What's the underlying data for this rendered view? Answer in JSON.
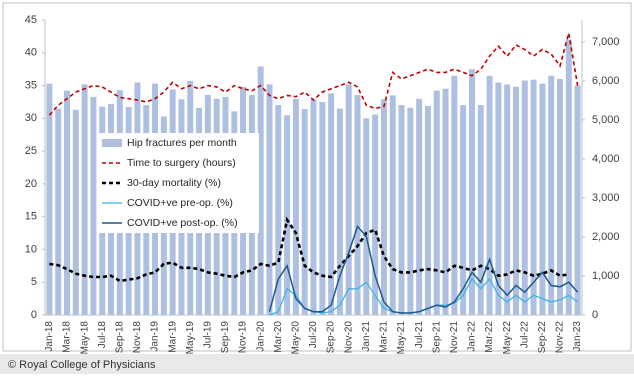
{
  "chart_data": {
    "type": "bar-line",
    "categories": [
      "Jan-18",
      null,
      "Mar-18",
      null,
      "May-18",
      null,
      "Jul-18",
      null,
      "Sep-18",
      null,
      "Nov-18",
      null,
      "Jan-19",
      null,
      "Mar-19",
      null,
      "May-19",
      null,
      "Jul-19",
      null,
      "Sep-19",
      null,
      "Nov-19",
      null,
      "Jan-20",
      null,
      "Mar-20",
      null,
      "May-20",
      null,
      "Jul-20",
      null,
      "Sep-20",
      null,
      "Nov-20",
      null,
      "Jan-21",
      null,
      "Mar-21",
      null,
      "May-21",
      null,
      "Jul-21",
      null,
      "Sep-21",
      null,
      "Nov-21",
      null,
      "Jan-22",
      null,
      "Mar-22",
      null,
      "May-22",
      null,
      "Jul-22",
      null,
      "Sep-22",
      null,
      "Nov-22",
      null,
      "Jan-23"
    ],
    "series": [
      {
        "name": "Hip fractures per month",
        "type": "bar",
        "axis": "y2",
        "color": "#aec0e2",
        "values": [
          5930,
          5290,
          5750,
          5260,
          5910,
          5590,
          5340,
          5410,
          5760,
          5330,
          5960,
          5380,
          5930,
          5090,
          5780,
          5530,
          6000,
          5310,
          5640,
          5540,
          5590,
          5220,
          5850,
          5640,
          6370,
          5910,
          5380,
          5120,
          5540,
          5280,
          5530,
          5460,
          5680,
          5290,
          5910,
          5640,
          5040,
          5140,
          5530,
          5630,
          5380,
          5310,
          5540,
          5360,
          5750,
          5800,
          6130,
          5380,
          6300,
          5380,
          6130,
          5960,
          5910,
          5850,
          6010,
          6030,
          5930,
          6130,
          6050,
          7060,
          5880
        ]
      },
      {
        "name": "Time to surgery (hours)",
        "type": "line",
        "dash": "4,3",
        "width": 1.6,
        "color": "#c00000",
        "values": [
          30.5,
          32,
          33,
          34,
          34.5,
          35,
          34.8,
          34,
          33.2,
          33,
          32.8,
          32.5,
          33,
          34,
          35.5,
          34.5,
          35,
          34.5,
          35,
          34.8,
          34,
          35,
          34.5,
          34.2,
          35,
          33.5,
          33,
          33.5,
          33.3,
          34,
          32.8,
          34,
          34.5,
          35,
          35.5,
          34.8,
          32,
          31.5,
          31.8,
          37,
          36,
          36.5,
          37,
          37.5,
          37,
          37,
          37.5,
          37,
          36.5,
          37.5,
          39.5,
          41,
          39.5,
          41.2,
          40.5,
          39.5,
          40.5,
          39.8,
          38,
          43,
          35
        ]
      },
      {
        "name": "30-day mortality (%)",
        "type": "line",
        "dash": "4,3",
        "width": 2.6,
        "color": "#000000",
        "values": [
          7.8,
          7.6,
          7,
          6.3,
          6,
          5.8,
          5.8,
          6,
          5.2,
          5.4,
          5.6,
          6.2,
          6.5,
          7.8,
          8,
          7.2,
          7.2,
          7,
          6.5,
          6.3,
          6,
          5.8,
          6.5,
          6.8,
          7.8,
          7.5,
          8,
          14.5,
          12.5,
          7.5,
          6.5,
          6,
          5.8,
          7.5,
          9,
          10.5,
          12.5,
          13,
          9,
          7,
          6.5,
          6.5,
          6.8,
          7,
          6.8,
          6.5,
          7.5,
          7.2,
          6.8,
          7.5,
          7,
          6,
          6.2,
          6.8,
          6.5,
          6,
          6.3,
          6.8,
          6,
          6.2,
          null
        ]
      },
      {
        "name": "COVID+ve pre-op. (%)",
        "type": "line",
        "dash": "",
        "width": 1.3,
        "color": "#3fb4e4",
        "values": [
          null,
          null,
          null,
          null,
          null,
          null,
          null,
          null,
          null,
          null,
          null,
          null,
          null,
          null,
          null,
          null,
          null,
          null,
          null,
          null,
          null,
          null,
          null,
          null,
          null,
          0,
          0.5,
          4,
          3,
          1,
          0.5,
          0.3,
          0.5,
          1.5,
          4,
          4,
          5,
          3,
          1,
          0.5,
          0.3,
          0.3,
          0.5,
          1,
          1.5,
          1.5,
          1.8,
          3,
          5.5,
          4,
          5.5,
          3,
          2,
          3,
          2,
          3,
          2.5,
          2,
          2.3,
          3,
          2
        ]
      },
      {
        "name": "COVID+ve post-op. (%)",
        "type": "line",
        "dash": "",
        "width": 1.5,
        "color": "#1d5a8c",
        "values": [
          null,
          null,
          null,
          null,
          null,
          null,
          null,
          null,
          null,
          null,
          null,
          null,
          null,
          null,
          null,
          null,
          null,
          null,
          null,
          null,
          null,
          null,
          null,
          null,
          null,
          0.5,
          5.5,
          7.5,
          2.5,
          1,
          0.5,
          0.5,
          1.5,
          6,
          9.5,
          13.5,
          12,
          6,
          2,
          0.5,
          0.3,
          0.3,
          0.5,
          1,
          1.5,
          1.2,
          2,
          4,
          6.5,
          5,
          8.5,
          4.5,
          3,
          4.5,
          3.5,
          5,
          6.5,
          4.5,
          4.3,
          5,
          3.5
        ]
      }
    ],
    "ylim": [
      0,
      45
    ],
    "yticks": [
      0,
      5,
      10,
      15,
      20,
      25,
      30,
      35,
      40,
      45
    ],
    "y2lim": [
      0,
      7560
    ],
    "y2ticks": [
      0,
      {
        "value": 1000,
        "label": "1,000"
      },
      {
        "value": 2000,
        "label": "2,000"
      },
      {
        "value": 3000,
        "label": "3,000"
      },
      {
        "value": 4000,
        "label": "4,000"
      },
      {
        "value": 5000,
        "label": "5,000"
      },
      {
        "value": 6000,
        "label": "6,000"
      },
      {
        "value": 7000,
        "label": "7,000"
      }
    ],
    "legend": "upper-left",
    "source": "© Royal College of Physicians"
  }
}
